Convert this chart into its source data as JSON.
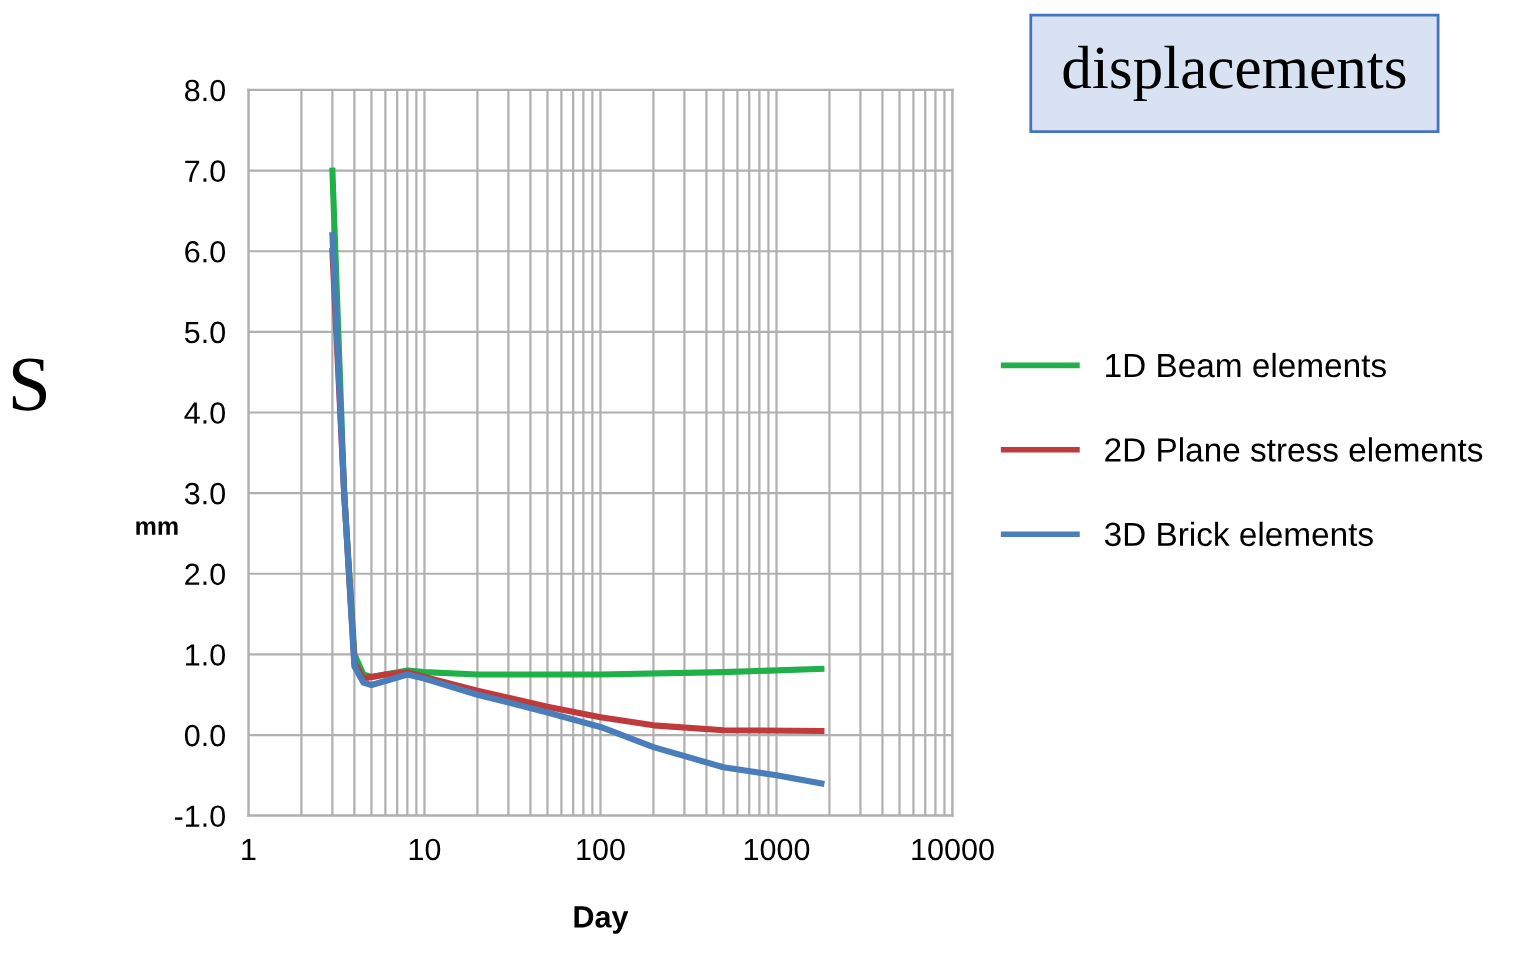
{
  "chart_data": {
    "type": "line",
    "title": "displacements",
    "xlabel": "Day",
    "ylabel": "mm",
    "annotations": [
      "S"
    ],
    "log": "x",
    "xlim": [
      1,
      10000
    ],
    "xticks": [
      1,
      10,
      100,
      1000,
      10000
    ],
    "ylim": [
      -1,
      8
    ],
    "yticks": [
      {
        "value": -1,
        "label": "-1.0"
      },
      {
        "value": 0,
        "label": "0.0"
      },
      {
        "value": 1,
        "label": "1.0"
      },
      {
        "value": 2,
        "label": "2.0"
      },
      {
        "value": 3,
        "label": "3.0"
      },
      {
        "value": 4,
        "label": "4.0"
      },
      {
        "value": 5,
        "label": "5.0"
      },
      {
        "value": 6,
        "label": "6.0"
      },
      {
        "value": 7,
        "label": "7.0"
      },
      {
        "value": 8,
        "label": "8.0"
      }
    ],
    "grid": true,
    "legend": "right",
    "marker": "none",
    "line_style": "solid",
    "series": [
      {
        "name": "1D Beam elements",
        "color": "#1fb04a",
        "x": [
          3,
          3.5,
          4,
          4.5,
          5,
          6,
          8,
          10,
          20,
          100,
          500,
          1800
        ],
        "values": [
          7.0,
          3.0,
          1.0,
          0.75,
          0.72,
          0.75,
          0.8,
          0.78,
          0.75,
          0.75,
          0.78,
          0.82
        ]
      },
      {
        "name": "2D Plane stress elements",
        "color": "#c0393b",
        "x": [
          3,
          3.5,
          4,
          4.5,
          5,
          6,
          8,
          10,
          20,
          50,
          100,
          200,
          500,
          1800
        ],
        "values": [
          6.0,
          3.0,
          0.9,
          0.7,
          0.72,
          0.75,
          0.78,
          0.72,
          0.55,
          0.35,
          0.22,
          0.12,
          0.06,
          0.05
        ]
      },
      {
        "name": "3D Brick elements",
        "color": "#4a7ebb",
        "x": [
          3,
          3.5,
          4,
          4.5,
          5,
          6,
          8,
          10,
          20,
          50,
          100,
          200,
          500,
          1000,
          1800
        ],
        "values": [
          6.2,
          3.0,
          0.85,
          0.65,
          0.62,
          0.67,
          0.75,
          0.7,
          0.5,
          0.28,
          0.1,
          -0.15,
          -0.4,
          -0.5,
          -0.6
        ]
      }
    ]
  }
}
